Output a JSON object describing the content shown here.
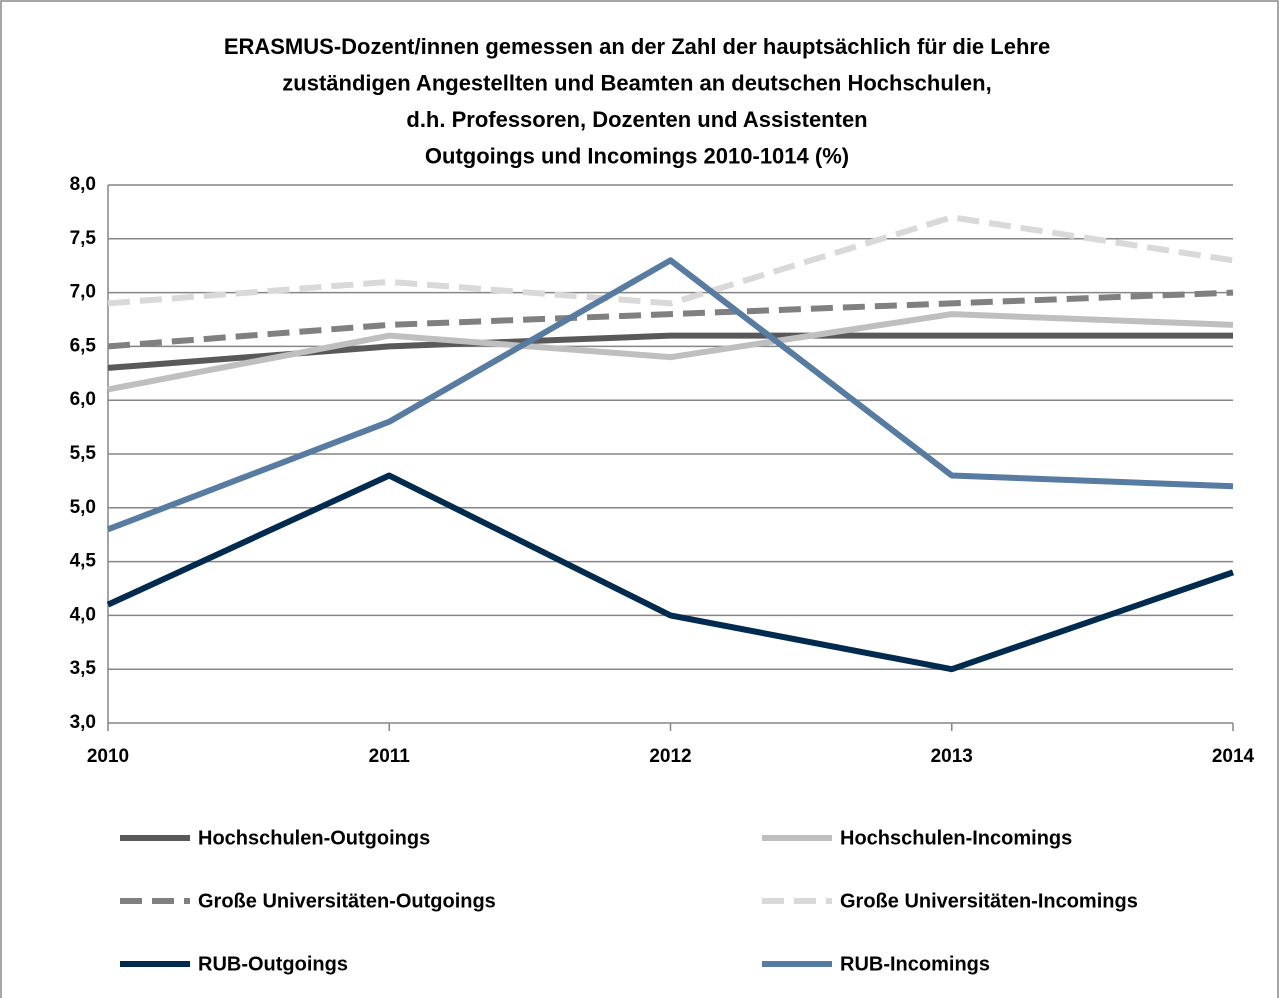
{
  "chart_data": {
    "type": "line",
    "title": [
      "ERASMUS-Dozent/innen gemessen an der Zahl der hauptsächlich für die Lehre",
      "zuständigen Angestellten und Beamten an deutschen Hochschulen,",
      "d.h. Professoren, Dozenten und Assistenten",
      "Outgoings und Incomings 2010-1014 (%)"
    ],
    "x": [
      2010,
      2011,
      2012,
      2013,
      2014
    ],
    "xlim": [
      2010,
      2014
    ],
    "xticks": [
      2010,
      2011,
      2012,
      2013,
      2014
    ],
    "ylim": [
      3,
      8
    ],
    "yticks": [
      {
        "value": 3,
        "label": "3,0"
      },
      {
        "value": 3.5,
        "label": "3,5"
      },
      {
        "value": 4,
        "label": "4,0"
      },
      {
        "value": 4.5,
        "label": "4,5"
      },
      {
        "value": 5,
        "label": "5,0"
      },
      {
        "value": 5.5,
        "label": "5,5"
      },
      {
        "value": 6,
        "label": "6,0"
      },
      {
        "value": 6.5,
        "label": "6,5"
      },
      {
        "value": 7,
        "label": "7,0"
      },
      {
        "value": 7.5,
        "label": "7,5"
      },
      {
        "value": 8,
        "label": "8,0"
      }
    ],
    "grid": true,
    "legend": "bottom",
    "series": [
      {
        "name": "Hochschulen-Outgoings",
        "color": "#595959",
        "dash": false,
        "values": [
          6.3,
          6.5,
          6.6,
          6.6,
          6.6
        ]
      },
      {
        "name": "Hochschulen-Incomings",
        "color": "#bfbfbf",
        "dash": false,
        "values": [
          6.1,
          6.6,
          6.4,
          6.8,
          6.7
        ]
      },
      {
        "name": "Große Universitäten-Outgoings",
        "color": "#808080",
        "dash": true,
        "values": [
          6.5,
          6.7,
          6.8,
          6.9,
          7.0
        ]
      },
      {
        "name": "Große Universitäten-Incomings",
        "color": "#d9d9d9",
        "dash": true,
        "values": [
          6.9,
          7.1,
          6.9,
          7.7,
          7.3
        ]
      },
      {
        "name": "RUB-Outgoings",
        "color": "#002b4f",
        "dash": false,
        "values": [
          4.1,
          5.3,
          4.0,
          3.5,
          4.4
        ]
      },
      {
        "name": "RUB-Incomings",
        "color": "#577ba1",
        "dash": false,
        "values": [
          4.8,
          5.8,
          7.3,
          5.3,
          5.2
        ]
      }
    ]
  }
}
